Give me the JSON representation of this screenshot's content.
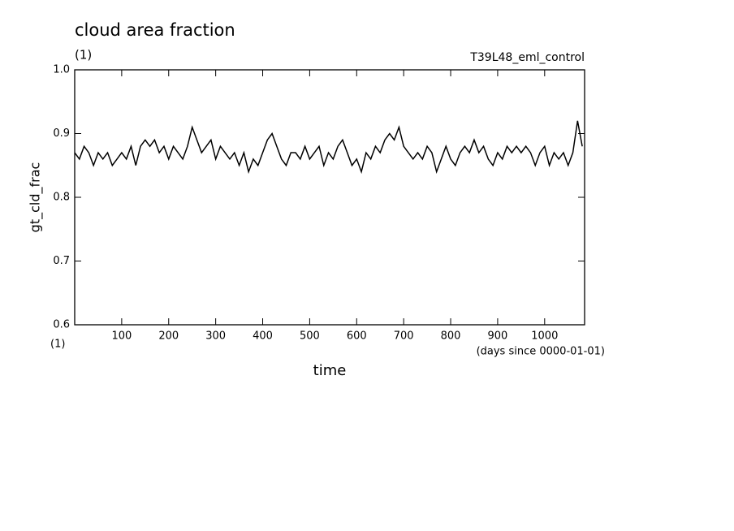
{
  "chart_data": {
    "type": "line",
    "title": "cloud area fraction",
    "subtitle": "(1)",
    "run_label": "T39L48_eml_control",
    "y_label": "gt_cld_frac",
    "y_unit": "(1)",
    "x_label": "time",
    "x_unit": "(days since 0000-01-01)",
    "x": [
      0,
      10,
      20,
      30,
      40,
      50,
      60,
      70,
      80,
      90,
      100,
      110,
      120,
      130,
      140,
      150,
      160,
      170,
      180,
      190,
      200,
      210,
      220,
      230,
      240,
      250,
      260,
      270,
      280,
      290,
      300,
      310,
      320,
      330,
      340,
      350,
      360,
      370,
      380,
      390,
      400,
      410,
      420,
      430,
      440,
      450,
      460,
      470,
      480,
      490,
      500,
      510,
      520,
      530,
      540,
      550,
      560,
      570,
      580,
      590,
      600,
      610,
      620,
      630,
      640,
      650,
      660,
      670,
      680,
      690,
      700,
      710,
      720,
      730,
      740,
      750,
      760,
      770,
      780,
      790,
      800,
      810,
      820,
      830,
      840,
      850,
      860,
      870,
      880,
      890,
      900,
      910,
      920,
      930,
      940,
      950,
      960,
      970,
      980,
      990,
      1000,
      1010,
      1020,
      1030,
      1040,
      1050,
      1060,
      1070,
      1080
    ],
    "series": [
      {
        "name": "gt_cld_frac",
        "color": "#000000",
        "values": [
          0.87,
          0.86,
          0.88,
          0.87,
          0.85,
          0.87,
          0.86,
          0.87,
          0.85,
          0.86,
          0.87,
          0.86,
          0.88,
          0.85,
          0.88,
          0.89,
          0.88,
          0.89,
          0.87,
          0.88,
          0.86,
          0.88,
          0.87,
          0.86,
          0.88,
          0.91,
          0.89,
          0.87,
          0.88,
          0.89,
          0.86,
          0.88,
          0.87,
          0.86,
          0.87,
          0.85,
          0.87,
          0.84,
          0.86,
          0.85,
          0.87,
          0.89,
          0.9,
          0.88,
          0.86,
          0.85,
          0.87,
          0.87,
          0.86,
          0.88,
          0.86,
          0.87,
          0.88,
          0.85,
          0.87,
          0.86,
          0.88,
          0.89,
          0.87,
          0.85,
          0.86,
          0.84,
          0.87,
          0.86,
          0.88,
          0.87,
          0.89,
          0.9,
          0.89,
          0.91,
          0.88,
          0.87,
          0.86,
          0.87,
          0.86,
          0.88,
          0.87,
          0.84,
          0.86,
          0.88,
          0.86,
          0.85,
          0.87,
          0.88,
          0.87,
          0.89,
          0.87,
          0.88,
          0.86,
          0.85,
          0.87,
          0.86,
          0.88,
          0.87,
          0.88,
          0.87,
          0.88,
          0.87,
          0.85,
          0.87,
          0.88,
          0.85,
          0.87,
          0.86,
          0.87,
          0.85,
          0.87,
          0.92,
          0.88
        ]
      }
    ],
    "xlim": [
      0,
      1085
    ],
    "ylim": [
      0.6,
      1
    ],
    "xticks": [
      100,
      200,
      300,
      400,
      500,
      600,
      700,
      800,
      900,
      1000
    ],
    "yticks": [
      0.6,
      0.7,
      0.8,
      0.9,
      {
        "value": 1,
        "label": "1.0"
      }
    ]
  }
}
